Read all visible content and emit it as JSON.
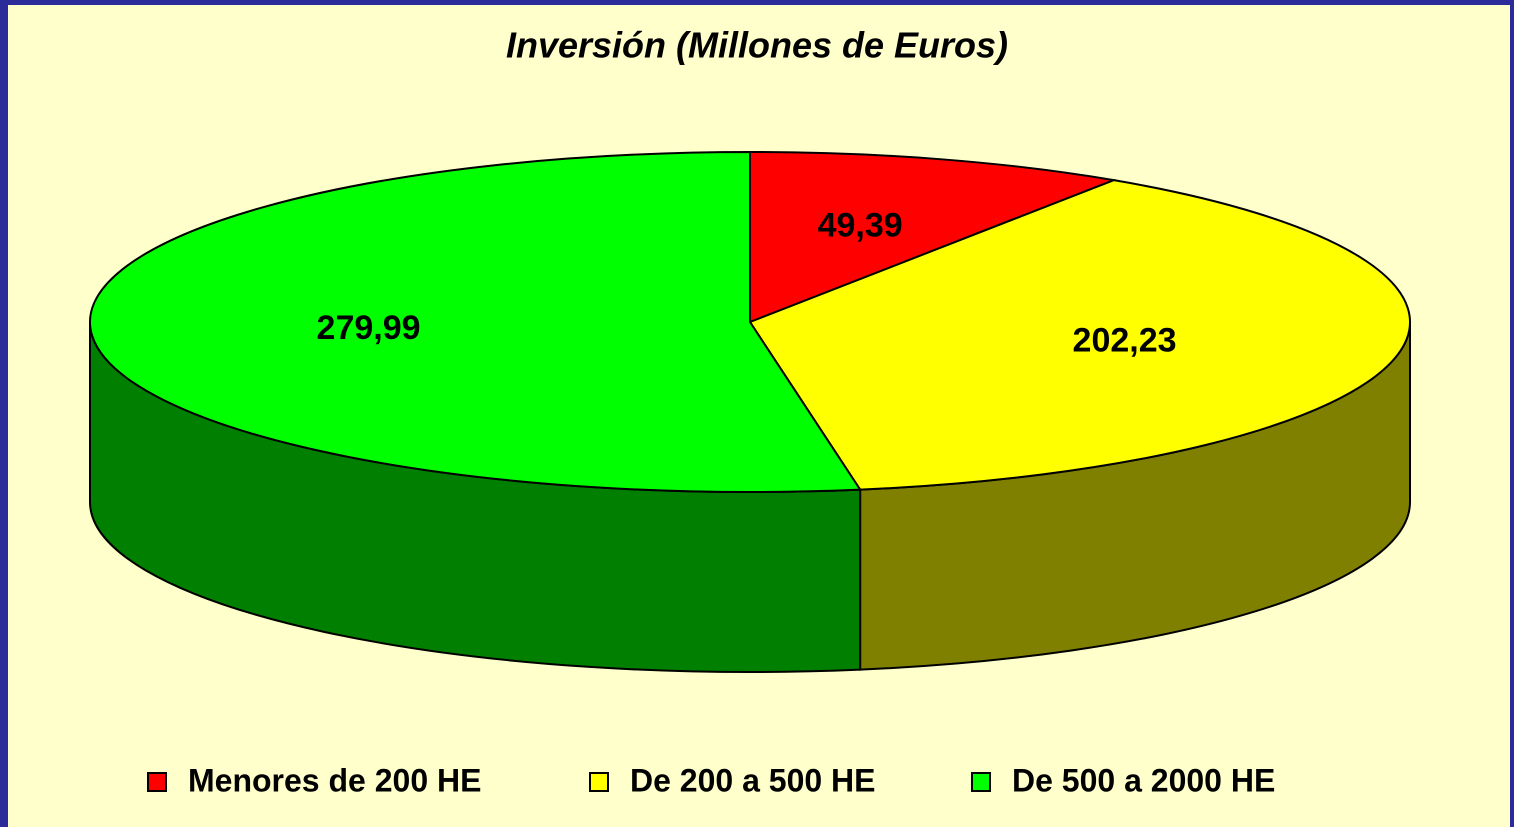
{
  "chart_data": {
    "type": "pie",
    "title": "Inversión (Millones de Euros)",
    "categories": [
      "Menores de 200 HE",
      "De 200 a 500 HE",
      "De 500 a 2000 HE"
    ],
    "values": [
      49.39,
      202.23,
      279.99
    ],
    "value_labels": [
      "49,39",
      "202,23",
      "279,99"
    ],
    "colors": [
      "#ff0000",
      "#ffff00",
      "#00ff00"
    ],
    "legend": "bottom"
  }
}
